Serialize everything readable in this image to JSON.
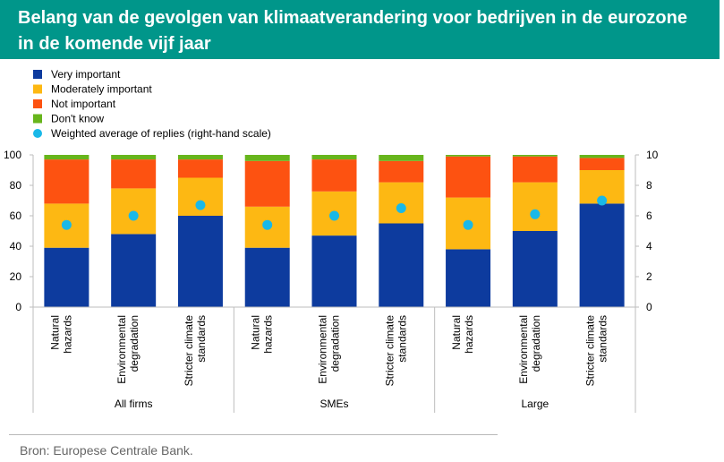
{
  "title": {
    "line1": "Belang van de gevolgen van klimaatverandering voor bedrijven in de eurozone",
    "line2": "in de komende vijf jaar"
  },
  "source": "Bron: Europese Centrale Bank.",
  "colors": {
    "very_important": "#0d3b9e",
    "moderately_important": "#fdb813",
    "not_important": "#fd5211",
    "dont_know": "#67b51c",
    "weighted_average": "#19b8e8",
    "banner": "#00968a"
  },
  "chart_data": {
    "type": "bar",
    "stacked": true,
    "legend": [
      {
        "key": "very_important",
        "label": "Very important"
      },
      {
        "key": "moderately_important",
        "label": "Moderately important"
      },
      {
        "key": "not_important",
        "label": "Not important"
      },
      {
        "key": "dont_know",
        "label": "Don't know"
      },
      {
        "key": "weighted_average",
        "label": "Weighted average of  replies (right-hand scale)"
      }
    ],
    "legend_position": "top-left",
    "groups": [
      "All firms",
      "SMEs",
      "Large"
    ],
    "categories": [
      "Natural hazards",
      "Environmental degradation",
      "Stricter climate standards",
      "Natural hazards",
      "Environmental degradation",
      "Stricter climate standards",
      "Natural hazards",
      "Environmental degradation",
      "Stricter climate standards"
    ],
    "category_lines": [
      [
        "Natural",
        "hazards"
      ],
      [
        "Environmental",
        "degradation"
      ],
      [
        "Stricter climate",
        "standards"
      ],
      [
        "Natural",
        "hazards"
      ],
      [
        "Environmental",
        "degradation"
      ],
      [
        "Stricter climate",
        "standards"
      ],
      [
        "Natural",
        "hazards"
      ],
      [
        "Environmental",
        "degradation"
      ],
      [
        "Stricter climate",
        "standards"
      ]
    ],
    "group_of_category": [
      0,
      0,
      0,
      1,
      1,
      1,
      2,
      2,
      2
    ],
    "series": [
      {
        "key": "very_important",
        "name": "Very important",
        "values": [
          39,
          48,
          60,
          39,
          47,
          55,
          38,
          50,
          68
        ]
      },
      {
        "key": "moderately_important",
        "name": "Moderately important",
        "values": [
          29,
          30,
          25,
          27,
          29,
          27,
          34,
          32,
          22
        ]
      },
      {
        "key": "not_important",
        "name": "Not important",
        "values": [
          29,
          19,
          12,
          30,
          21,
          14,
          27,
          17,
          8
        ]
      },
      {
        "key": "dont_know",
        "name": "Don't know",
        "values": [
          3,
          3,
          3,
          4,
          3,
          4,
          1,
          1,
          2
        ]
      }
    ],
    "weighted_average": {
      "name": "Weighted average of  replies (right-hand scale)",
      "values": [
        5.4,
        6.0,
        6.7,
        5.4,
        6.0,
        6.5,
        5.4,
        6.1,
        7.0
      ]
    },
    "y_left": {
      "min": 0,
      "max": 100,
      "ticks": [
        0,
        20,
        40,
        60,
        80,
        100
      ]
    },
    "y_right": {
      "min": 0,
      "max": 10,
      "ticks": [
        0,
        2,
        4,
        6,
        8,
        10
      ]
    },
    "grid": false
  }
}
